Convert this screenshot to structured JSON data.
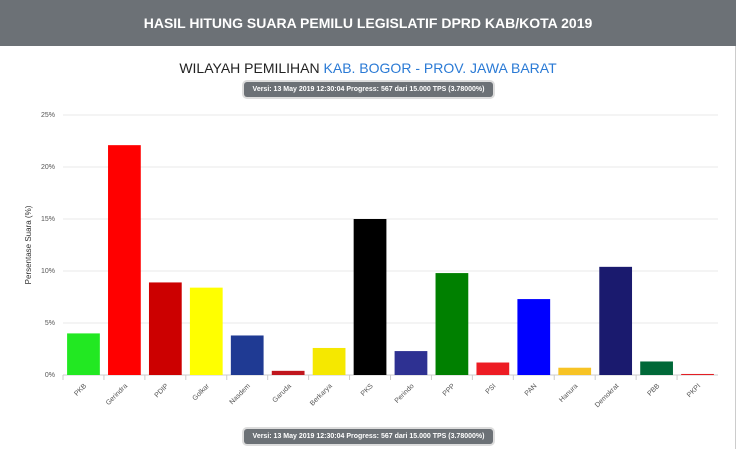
{
  "header": {
    "title": "HASIL HITUNG SUARA PEMILU LEGISLATIF DPRD KAB/KOTA 2019"
  },
  "subtitle": {
    "prefix": "WILAYAH PEMILIHAN",
    "region": "KAB. BOGOR - PROV. JAWA BARAT"
  },
  "version_badge": "Versi: 13 May 2019 12:30:04 Progress: 567 dari 15.000 TPS (3.78000%)",
  "chart_data": {
    "type": "bar",
    "y_label": "Persentase Suara (%)",
    "categories": [
      "PKB",
      "Gerindra",
      "PDIP",
      "Golkar",
      "Nasdem",
      "Garuda",
      "Berkarya",
      "PKS",
      "Perindo",
      "PPP",
      "PSI",
      "PAN",
      "Hanura",
      "Demokrat",
      "PBB",
      "PKPI"
    ],
    "values": [
      4.0,
      22.1,
      8.9,
      8.4,
      3.8,
      0.4,
      2.6,
      15.0,
      2.3,
      9.8,
      1.2,
      7.3,
      0.7,
      10.4,
      1.3,
      0.1
    ],
    "colors": [
      "#22e822",
      "#ff0000",
      "#cc0000",
      "#ffff00",
      "#1f3a93",
      "#c0161d",
      "#f5e800",
      "#000000",
      "#2e3192",
      "#008000",
      "#ed1c24",
      "#0000ff",
      "#f7c325",
      "#1a1a6e",
      "#006838",
      "#e31e24"
    ],
    "ylim": [
      0,
      25
    ],
    "yticks": [
      {
        "value": 0,
        "label": "0%"
      },
      {
        "value": 5,
        "label": "5%"
      },
      {
        "value": 10,
        "label": "10%"
      },
      {
        "value": 15,
        "label": "15%"
      },
      {
        "value": 20,
        "label": "20%"
      },
      {
        "value": 25,
        "label": "25%"
      }
    ],
    "grid": true
  }
}
